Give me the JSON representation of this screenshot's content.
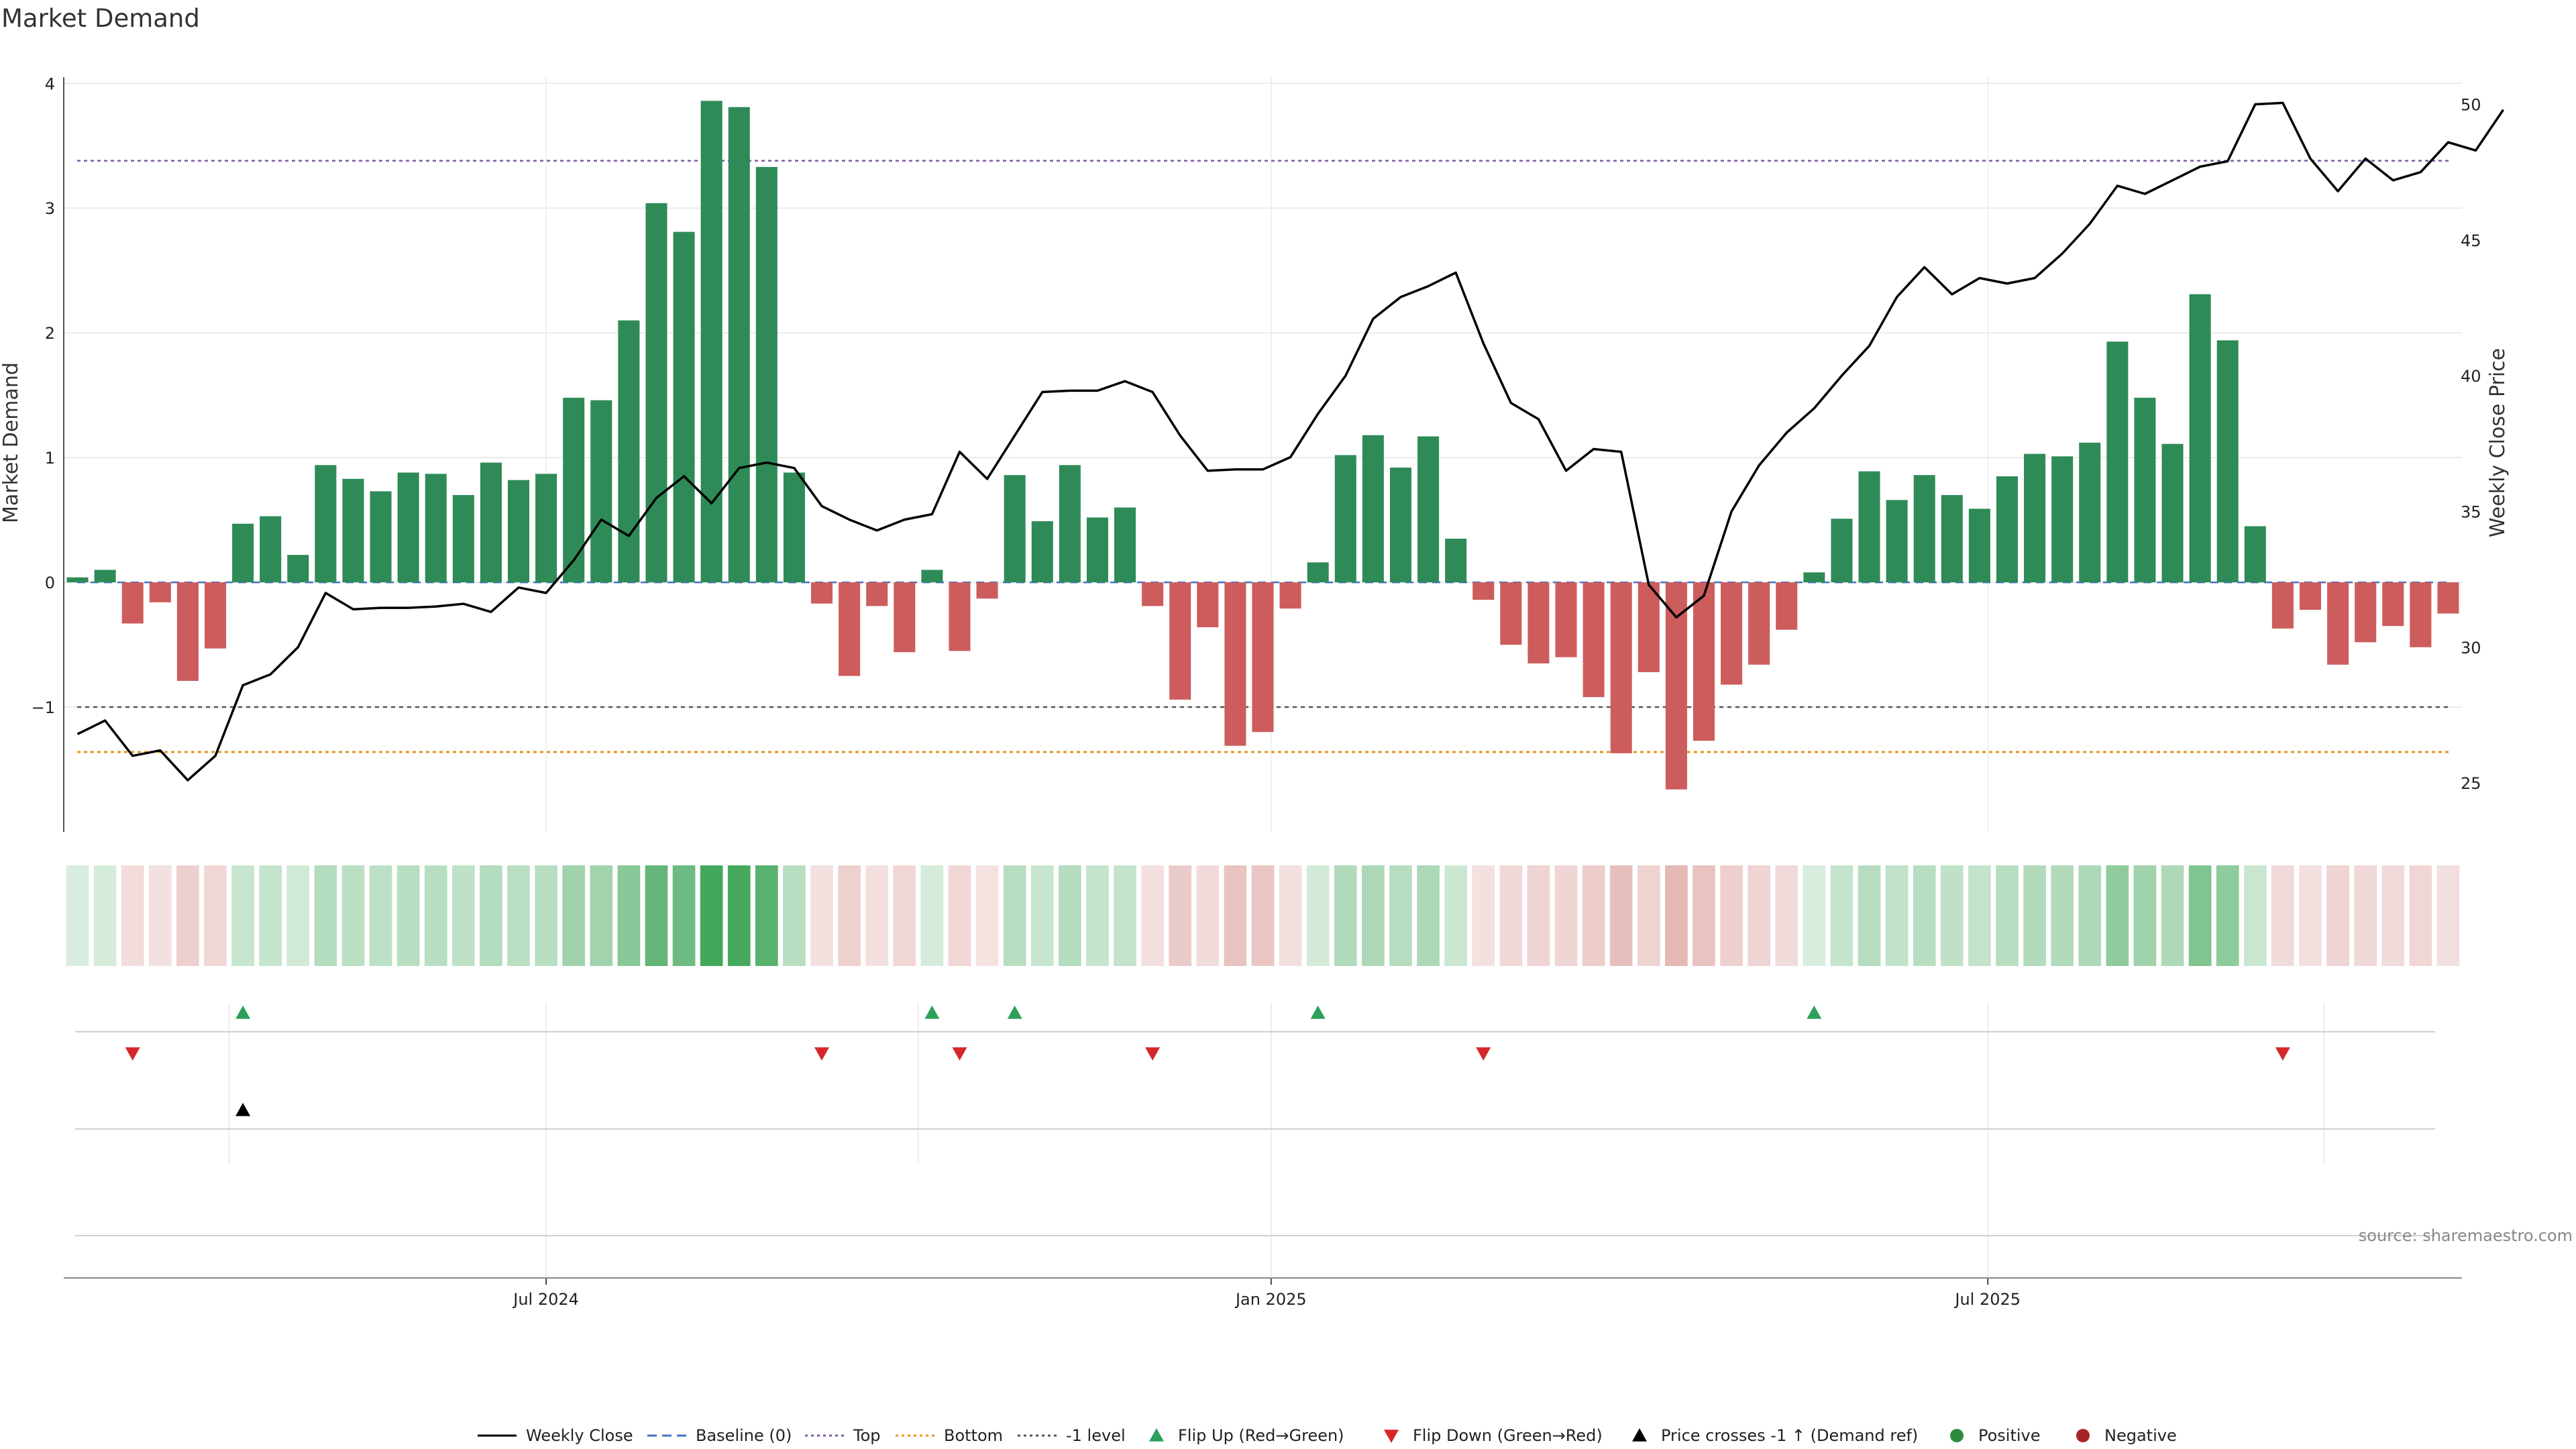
{
  "chart_data": {
    "type": "bar",
    "title": "Market Demand",
    "ylabel": "Market Demand",
    "y2label": "Weekly Close Price",
    "ylim": [
      -2.0,
      4.05
    ],
    "y2lim": [
      23.2,
      51.0
    ],
    "yticks": [
      -1,
      0,
      1,
      2,
      3,
      4
    ],
    "y2ticks": [
      25,
      30,
      35,
      40,
      45,
      50
    ],
    "reference_lines": {
      "top": 3.38,
      "bottom": -1.36,
      "minus_one": -1.0
    },
    "x_ticks": [
      {
        "label": "Jul 2024",
        "index": 17
      },
      {
        "label": "Jan 2025",
        "index": 43.3
      },
      {
        "label": "Jul 2025",
        "index": 69.3
      }
    ],
    "grid": true,
    "legend_position": "bottom",
    "demand": [
      0.04,
      0.1,
      -0.33,
      -0.16,
      -0.79,
      -0.53,
      0.47,
      0.53,
      0.22,
      0.94,
      0.83,
      0.73,
      0.88,
      0.87,
      0.7,
      0.96,
      0.82,
      0.87,
      1.48,
      1.46,
      2.1,
      3.04,
      2.81,
      3.86,
      3.81,
      3.33,
      0.88,
      -0.17,
      -0.75,
      -0.19,
      -0.56,
      0.1,
      -0.55,
      -0.13,
      0.86,
      0.49,
      0.94,
      0.52,
      0.6,
      -0.19,
      -0.94,
      -0.36,
      -1.31,
      -1.2,
      -0.21,
      0.16,
      1.02,
      1.18,
      0.92,
      1.17,
      0.35,
      -0.14,
      -0.5,
      -0.65,
      -0.6,
      -0.92,
      -1.37,
      -0.72,
      -1.66,
      -1.27,
      -0.82,
      -0.66,
      -0.38,
      0.08,
      0.51,
      0.89,
      0.66,
      0.86,
      0.7,
      0.59,
      0.85,
      1.03,
      1.01,
      1.12,
      1.93,
      1.48,
      1.11,
      2.31,
      1.94,
      0.45,
      -0.37,
      -0.22,
      -0.66,
      -0.48,
      -0.35,
      -0.52,
      -0.25
    ],
    "weekly_close": [
      26.8,
      27.3,
      26.0,
      26.2,
      25.1,
      26.0,
      28.6,
      29.0,
      30.0,
      32.0,
      31.4,
      31.45,
      31.45,
      31.5,
      31.6,
      31.3,
      32.2,
      32.0,
      33.2,
      34.7,
      34.1,
      35.5,
      36.3,
      35.3,
      36.6,
      36.8,
      36.6,
      35.2,
      34.7,
      34.3,
      34.7,
      34.9,
      37.2,
      36.2,
      37.8,
      39.4,
      39.45,
      39.45,
      39.8,
      39.4,
      37.8,
      36.5,
      36.55,
      36.55,
      37.0,
      38.6,
      40.0,
      42.1,
      42.9,
      43.3,
      43.8,
      41.2,
      39.0,
      38.4,
      36.5,
      37.3,
      37.2,
      32.3,
      31.1,
      31.9,
      35.0,
      36.7,
      37.9,
      38.8,
      40.0,
      41.1,
      42.9,
      44.0,
      43.0,
      43.6,
      43.4,
      43.6,
      44.5,
      45.6,
      47.0,
      46.7,
      47.2,
      47.7,
      47.9,
      50.0,
      50.05,
      48.0,
      46.8,
      48.0,
      47.2,
      47.5,
      48.6,
      48.3,
      49.8
    ],
    "flip_up": [
      6,
      31,
      34,
      45,
      63
    ],
    "flip_down": [
      2,
      27,
      32,
      39,
      51,
      80
    ],
    "price_cross": [
      6
    ],
    "legend": [
      {
        "label": "Weekly Close",
        "kind": "line",
        "color": "#000000"
      },
      {
        "label": "Baseline (0)",
        "kind": "dashed",
        "color": "#4472c4"
      },
      {
        "label": "Top",
        "kind": "dotted",
        "color": "#7b5aa6"
      },
      {
        "label": "Bottom",
        "kind": "dotted",
        "color": "#e69520"
      },
      {
        "label": "-1 level",
        "kind": "dotted",
        "color": "#555555"
      },
      {
        "label": "Flip Up (Red→Green)",
        "kind": "tri-up",
        "color": "#2ca05a"
      },
      {
        "label": "Flip Down (Green→Red)",
        "kind": "tri-down",
        "color": "#d62728"
      },
      {
        "label": "Price crosses -1 ↑ (Demand ref)",
        "kind": "tri-up",
        "color": "#000000"
      },
      {
        "label": "Positive",
        "kind": "dot",
        "color": "#2e8b3e"
      },
      {
        "label": "Negative",
        "kind": "dot",
        "color": "#a82424"
      }
    ],
    "source": "source: sharemaestro.com"
  },
  "colors": {
    "positive": "#2e8b57",
    "negative": "#cd5c5c",
    "heat_positive": "#2f9e4a",
    "heat_negative": "#c8706a"
  }
}
